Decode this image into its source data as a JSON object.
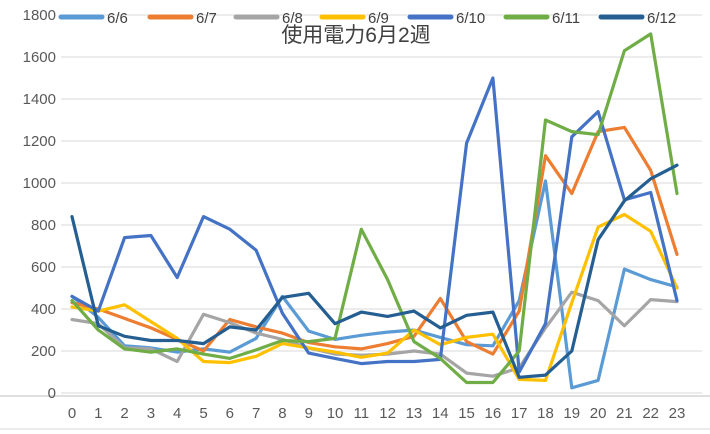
{
  "chart_data": {
    "type": "line",
    "title": "使用電力6月2週",
    "xlabel": "",
    "ylabel": "",
    "ylim": [
      0,
      1800
    ],
    "yticks": [
      0,
      200,
      400,
      600,
      800,
      1000,
      1200,
      1400,
      1600,
      1800
    ],
    "categories": [
      "0",
      "1",
      "2",
      "3",
      "4",
      "5",
      "6",
      "7",
      "8",
      "9",
      "10",
      "11",
      "12",
      "13",
      "14",
      "15",
      "16",
      "17",
      "18",
      "19",
      "20",
      "21",
      "22",
      "23"
    ],
    "grid": true,
    "legend_position": "top",
    "series": [
      {
        "name": "6/6",
        "color": "#5B9BD5",
        "values": [
          460,
          360,
          225,
          215,
          195,
          210,
          195,
          260,
          460,
          295,
          255,
          275,
          290,
          300,
          265,
          230,
          225,
          440,
          1010,
          25,
          60,
          590,
          540,
          505
        ]
      },
      {
        "name": "6/7",
        "color": "#ED7D31",
        "values": [
          430,
          400,
          355,
          310,
          255,
          200,
          350,
          315,
          285,
          240,
          220,
          210,
          235,
          270,
          450,
          245,
          185,
          390,
          1130,
          950,
          1245,
          1265,
          1060,
          660
        ]
      },
      {
        "name": "6/8",
        "color": "#A5A5A5",
        "values": [
          350,
          330,
          215,
          210,
          150,
          375,
          335,
          285,
          255,
          215,
          185,
          180,
          185,
          200,
          185,
          95,
          80,
          120,
          310,
          480,
          440,
          320,
          445,
          435
        ]
      },
      {
        "name": "6/9",
        "color": "#FFC000",
        "values": [
          410,
          390,
          420,
          340,
          260,
          150,
          145,
          175,
          235,
          215,
          195,
          170,
          190,
          300,
          230,
          265,
          280,
          65,
          60,
          430,
          790,
          850,
          770,
          500
        ]
      },
      {
        "name": "6/10",
        "color": "#4472C4",
        "values": [
          460,
          390,
          740,
          750,
          550,
          840,
          780,
          680,
          380,
          190,
          165,
          140,
          150,
          150,
          160,
          1190,
          1500,
          100,
          330,
          1220,
          1340,
          920,
          955,
          440
        ]
      },
      {
        "name": "6/11",
        "color": "#70AD47",
        "values": [
          440,
          300,
          210,
          195,
          210,
          185,
          165,
          205,
          250,
          245,
          260,
          780,
          540,
          245,
          165,
          50,
          50,
          200,
          1300,
          1245,
          1230,
          1630,
          1710,
          950
        ]
      },
      {
        "name": "6/12",
        "color": "#255E91",
        "values": [
          840,
          320,
          270,
          250,
          250,
          235,
          315,
          300,
          455,
          475,
          330,
          385,
          365,
          390,
          310,
          370,
          385,
          75,
          85,
          200,
          730,
          915,
          1020,
          1085
        ]
      }
    ],
    "gridline_color": "#D9D9D9",
    "axis_line_color": "#BFBFBF"
  }
}
